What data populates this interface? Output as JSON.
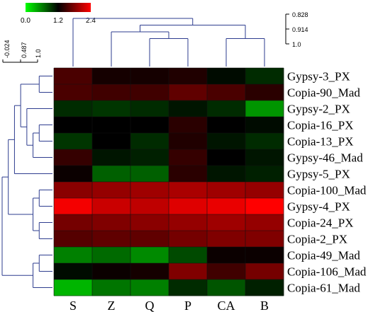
{
  "chart_data": {
    "type": "heatmap",
    "columns": [
      "S",
      "Z",
      "Q",
      "P",
      "CA",
      "B"
    ],
    "rows": [
      "Gypsy-3_PX",
      "Copia-90_Mad",
      "Gypsy-2_PX",
      "Copia-16_PX",
      "Copia-13_PX",
      "Gypsy-46_Mad",
      "Gypsy-5_PX",
      "Copia-100_Mad",
      "Gypsy-4_PX",
      "Copia-24_PX",
      "Copia-2_PX",
      "Copia-49_Mad",
      "Copia-106_Mad",
      "Copia-61_Mad"
    ],
    "values": [
      [
        1.55,
        1.3,
        1.3,
        1.35,
        1.15,
        1.0
      ],
      [
        1.55,
        1.5,
        1.5,
        1.65,
        1.55,
        1.4
      ],
      [
        1.0,
        0.95,
        1.0,
        1.1,
        1.0,
        0.5
      ],
      [
        1.2,
        1.2,
        1.2,
        1.4,
        1.2,
        1.15
      ],
      [
        0.95,
        1.2,
        1.0,
        1.35,
        1.1,
        1.0
      ],
      [
        1.45,
        1.1,
        1.05,
        1.45,
        1.2,
        1.1
      ],
      [
        1.25,
        0.75,
        0.75,
        1.4,
        1.1,
        1.05
      ],
      [
        1.85,
        1.9,
        1.95,
        2.0,
        1.95,
        1.9
      ],
      [
        2.35,
        2.15,
        2.1,
        2.25,
        2.3,
        2.4
      ],
      [
        1.75,
        1.8,
        1.85,
        1.9,
        1.95,
        1.9
      ],
      [
        1.6,
        1.65,
        1.65,
        1.75,
        1.8,
        1.8
      ],
      [
        0.6,
        0.7,
        0.55,
        0.85,
        1.25,
        1.25
      ],
      [
        1.15,
        1.25,
        1.3,
        1.8,
        1.5,
        1.75
      ],
      [
        0.35,
        0.65,
        0.6,
        1.0,
        0.8,
        1.05
      ]
    ],
    "color_scale": {
      "min": 0.0,
      "mid": 1.2,
      "max": 2.4,
      "tick_labels": [
        "0.0",
        "1.2",
        "2.4"
      ],
      "low_color": "#00ff00",
      "mid_color": "#000000",
      "high_color": "#ff0000"
    },
    "column_dendrogram_axis": {
      "tick_labels": [
        "0.828",
        "0.914",
        "1.0"
      ]
    },
    "row_dendrogram_axis": {
      "tick_labels": [
        "-0.024",
        "0.487",
        "1.0"
      ]
    },
    "dendrogram_color": "#2e3d8f",
    "row_tree": {
      "children": [
        {
          "children": [
            {
              "children": [
                {
                  "children": [
                    {
                      "children": [
                        {
                          "leaf": 0
                        },
                        {
                          "leaf": 1
                        }
                      ]
                    },
                    {
                      "children": [
                        {
                          "leaf": 2
                        },
                        {
                          "children": [
                            {
                              "children": [
                                {
                                  "leaf": 3
                                },
                                {
                                  "leaf": 4
                                }
                              ]
                            },
                            {
                              "leaf": 5
                            }
                          ]
                        }
                      ]
                    }
                  ]
                },
                {
                  "leaf": 6
                }
              ]
            },
            {
              "children": [
                {
                  "children": [
                    {
                      "leaf": 7
                    },
                    {
                      "leaf": 8
                    }
                  ]
                },
                {
                  "children": [
                    {
                      "leaf": 9
                    },
                    {
                      "leaf": 10
                    }
                  ]
                }
              ]
            }
          ]
        },
        {
          "children": [
            {
              "children": [
                {
                  "leaf": 11
                },
                {
                  "leaf": 12
                }
              ]
            },
            {
              "leaf": 13
            }
          ]
        }
      ]
    },
    "column_tree": {
      "children": [
        {
          "leaf": 0
        },
        {
          "children": [
            {
              "children": [
                {
                  "leaf": 1
                },
                {
                  "children": [
                    {
                      "leaf": 2
                    },
                    {
                      "leaf": 3
                    }
                  ]
                }
              ]
            },
            {
              "children": [
                {
                  "leaf": 4
                },
                {
                  "leaf": 5
                }
              ]
            }
          ]
        }
      ]
    }
  }
}
